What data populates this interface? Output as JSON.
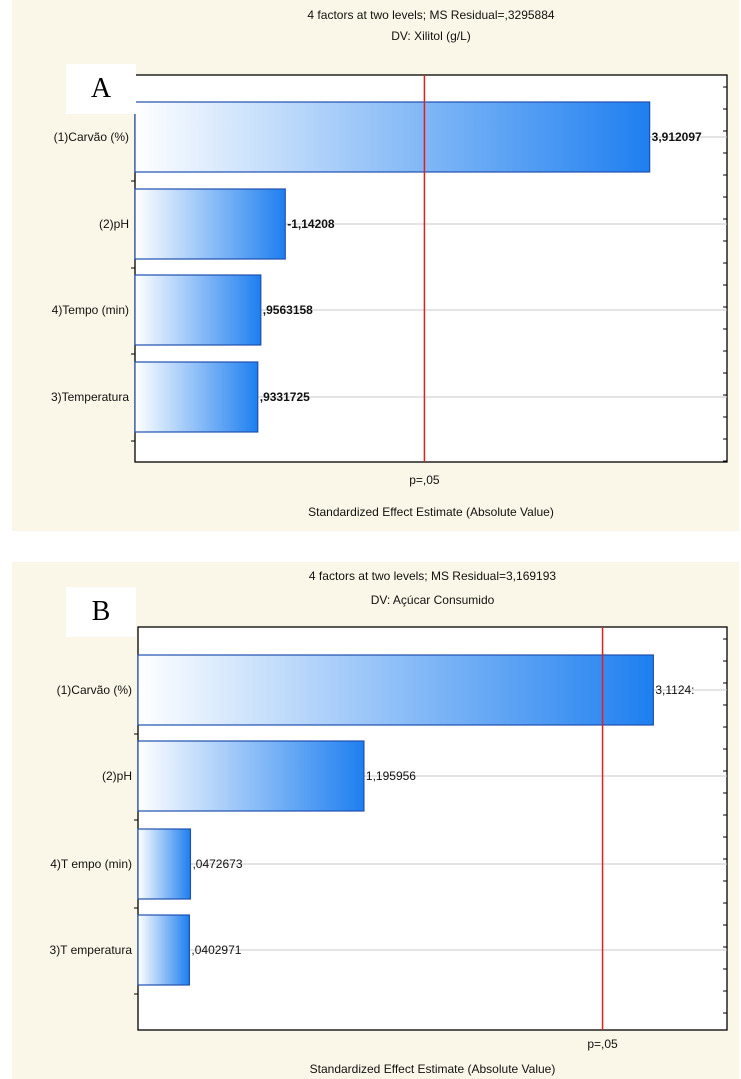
{
  "chart_data": [
    {
      "type": "bar",
      "orientation": "horizontal",
      "panel_label": "A",
      "title": "4 factors at two levels; MS Residual=,3295884",
      "subtitle": "DV: Xilitol (g/L)",
      "xlabel": "Standardized Effect Estimate (Absolute Value)",
      "categories": [
        "(1)Carvão (%)",
        "(2)pH",
        "4)Tempo (min)",
        "3)Temperatura"
      ],
      "values": [
        3.912097,
        1.14208,
        0.9563158,
        0.9331725
      ],
      "value_labels": [
        "3,912097",
        "-1,14208",
        ",9563158",
        ",9331725"
      ],
      "threshold": {
        "label": "p=,05",
        "value": 2.2,
        "color": "#e02020"
      },
      "xlim": [
        0,
        4.5
      ],
      "bar_color_start": "#ffffff",
      "bar_color_end": "#1e7ff0",
      "grid": true
    },
    {
      "type": "bar",
      "orientation": "horizontal",
      "panel_label": "B",
      "title": "4 factors at two levels; MS Residual=3,169193",
      "subtitle": "DV: Açúcar Consumido",
      "xlabel": "Standardized Effect Estimate (Absolute Value)",
      "categories": [
        "(1)Carvão (%)",
        "(2)pH",
        "4)T empo (min)",
        "3)T emperatura"
      ],
      "values": [
        3.1124,
        1.195956,
        0.0472673,
        0.0402971
      ],
      "value_labels": [
        "3,1124:",
        "1,195956",
        ",0472673",
        ",0402971"
      ],
      "threshold": {
        "label": "p=,05",
        "value": 2.776,
        "color": "#e02020"
      },
      "xlim": [
        -0.3,
        3.6
      ],
      "bar_color_start": "#ffffff",
      "bar_color_end": "#1e7ff0",
      "grid": true
    }
  ]
}
